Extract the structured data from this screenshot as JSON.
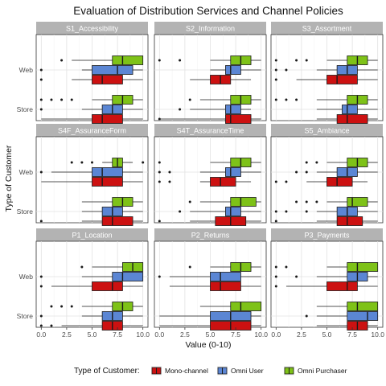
{
  "chart_data": {
    "type": "boxplot",
    "title": "Evaluation of Distribution Services and Channel Policies",
    "xlabel": "Value (0-10)",
    "ylabel": "Type of Customer",
    "xlim": [
      -0.5,
      10.5
    ],
    "x_ticks": [
      "0.0",
      "2.5",
      "5.0",
      "7.5",
      "10.0"
    ],
    "y_categories": [
      "Web",
      "Store"
    ],
    "legend": {
      "title": "Type of Customer:",
      "position": "bottom",
      "items": [
        {
          "name": "Mono-channel",
          "color": "#cc1111"
        },
        {
          "name": "Omni User",
          "color": "#5b86d4"
        },
        {
          "name": "Omni Purchaser",
          "color": "#7ec218"
        }
      ]
    },
    "grid": true,
    "panels": [
      {
        "label": "S1_Accessibility",
        "groups": {
          "Web": [
            {
              "series": "Omni Purchaser",
              "whisker_low": 3,
              "q1": 7,
              "median": 8,
              "q3": 10,
              "whisker_high": 10,
              "outliers": [
                2
              ]
            },
            {
              "series": "Omni User",
              "whisker_low": 4,
              "q1": 5,
              "median": 7.5,
              "q3": 9,
              "whisker_high": 10,
              "outliers": [
                0
              ]
            },
            {
              "series": "Mono-channel",
              "whisker_low": 3,
              "q1": 5,
              "median": 6,
              "q3": 8,
              "whisker_high": 10,
              "outliers": [
                0
              ]
            }
          ],
          "Store": [
            {
              "series": "Omni Purchaser",
              "whisker_low": 5,
              "q1": 7,
              "median": 8,
              "q3": 9,
              "whisker_high": 10,
              "outliers": [
                0,
                1,
                2,
                3
              ]
            },
            {
              "series": "Omni User",
              "whisker_low": 4,
              "q1": 6,
              "median": 7,
              "q3": 8,
              "whisker_high": 10,
              "outliers": [
                0
              ]
            },
            {
              "series": "Mono-channel",
              "whisker_low": 0,
              "q1": 5,
              "median": 6,
              "q3": 8,
              "whisker_high": 10,
              "outliers": []
            }
          ]
        }
      },
      {
        "label": "S2_Information",
        "groups": {
          "Web": [
            {
              "series": "Omni Purchaser",
              "whisker_low": 5,
              "q1": 7,
              "median": 8,
              "q3": 9,
              "whisker_high": 10,
              "outliers": [
                0,
                2
              ]
            },
            {
              "series": "Omni User",
              "whisker_low": 5,
              "q1": 6.5,
              "median": 7,
              "q3": 8,
              "whisker_high": 10,
              "outliers": []
            },
            {
              "series": "Mono-channel",
              "whisker_low": 3,
              "q1": 5,
              "median": 6,
              "q3": 7,
              "whisker_high": 9,
              "outliers": []
            }
          ],
          "Store": [
            {
              "series": "Omni Purchaser",
              "whisker_low": 4,
              "q1": 7,
              "median": 8,
              "q3": 9,
              "whisker_high": 10,
              "outliers": [
                3
              ]
            },
            {
              "series": "Omni User",
              "whisker_low": 3,
              "q1": 6.5,
              "median": 7,
              "q3": 8,
              "whisker_high": 9,
              "outliers": [
                2
              ]
            },
            {
              "series": "Mono-channel",
              "whisker_low": 0,
              "q1": 6.5,
              "median": 7,
              "q3": 9,
              "whisker_high": 10,
              "outliers": [
                0
              ]
            }
          ]
        }
      },
      {
        "label": "S3_Assortment",
        "groups": {
          "Web": [
            {
              "series": "Omni Purchaser",
              "whisker_low": 5,
              "q1": 7,
              "median": 8,
              "q3": 9,
              "whisker_high": 10,
              "outliers": [
                0,
                2,
                3
              ]
            },
            {
              "series": "Omni User",
              "whisker_low": 4,
              "q1": 6,
              "median": 7,
              "q3": 8,
              "whisker_high": 10,
              "outliers": [
                0,
                1
              ]
            },
            {
              "series": "Mono-channel",
              "whisker_low": 2,
              "q1": 5,
              "median": 6,
              "q3": 8,
              "whisker_high": 10,
              "outliers": [
                0
              ]
            }
          ],
          "Store": [
            {
              "series": "Omni Purchaser",
              "whisker_low": 4,
              "q1": 7,
              "median": 8,
              "q3": 9,
              "whisker_high": 10,
              "outliers": [
                0,
                1,
                2
              ]
            },
            {
              "series": "Omni User",
              "whisker_low": 4,
              "q1": 6.5,
              "median": 7,
              "q3": 8,
              "whisker_high": 10,
              "outliers": []
            },
            {
              "series": "Mono-channel",
              "whisker_low": 4,
              "q1": 6,
              "median": 7,
              "q3": 9,
              "whisker_high": 10,
              "outliers": []
            }
          ]
        }
      },
      {
        "label": "S4F_AssuranceForm",
        "groups": {
          "Web": [
            {
              "series": "Omni Purchaser",
              "whisker_low": 6,
              "q1": 7,
              "median": 7.5,
              "q3": 8,
              "whisker_high": 9,
              "outliers": [
                3,
                4,
                5,
                10
              ]
            },
            {
              "series": "Omni User",
              "whisker_low": 1,
              "q1": 5,
              "median": 6,
              "q3": 8,
              "whisker_high": 10,
              "outliers": [
                0
              ]
            },
            {
              "series": "Mono-channel",
              "whisker_low": 0,
              "q1": 5,
              "median": 6,
              "q3": 8,
              "whisker_high": 10,
              "outliers": []
            }
          ],
          "Store": [
            {
              "series": "Omni Purchaser",
              "whisker_low": 4,
              "q1": 7,
              "median": 8,
              "q3": 9,
              "whisker_high": 10,
              "outliers": []
            },
            {
              "series": "Omni User",
              "whisker_low": 4,
              "q1": 6,
              "median": 7,
              "q3": 8,
              "whisker_high": 10,
              "outliers": []
            },
            {
              "series": "Mono-channel",
              "whisker_low": 4,
              "q1": 6,
              "median": 7,
              "q3": 9,
              "whisker_high": 10,
              "outliers": [
                0
              ]
            }
          ]
        }
      },
      {
        "label": "S4T_AssuranceTime",
        "groups": {
          "Web": [
            {
              "series": "Omni Purchaser",
              "whisker_low": 5,
              "q1": 7,
              "median": 8,
              "q3": 9,
              "whisker_high": 10,
              "outliers": [
                0
              ]
            },
            {
              "series": "Omni User",
              "whisker_low": 4,
              "q1": 6.5,
              "median": 7,
              "q3": 8,
              "whisker_high": 10,
              "outliers": [
                0,
                1
              ]
            },
            {
              "series": "Mono-channel",
              "whisker_low": 4,
              "q1": 5,
              "median": 6,
              "q3": 7.5,
              "whisker_high": 9,
              "outliers": [
                0,
                1
              ]
            }
          ],
          "Store": [
            {
              "series": "Omni Purchaser",
              "whisker_low": 4,
              "q1": 7,
              "median": 8,
              "q3": 9.5,
              "whisker_high": 10,
              "outliers": [
                3
              ]
            },
            {
              "series": "Omni User",
              "whisker_low": 3,
              "q1": 6.5,
              "median": 7,
              "q3": 8,
              "whisker_high": 10,
              "outliers": [
                2
              ]
            },
            {
              "series": "Mono-channel",
              "whisker_low": 3,
              "q1": 5.5,
              "median": 7,
              "q3": 8.5,
              "whisker_high": 10,
              "outliers": [
                0
              ]
            }
          ]
        }
      },
      {
        "label": "S5_Ambiance",
        "groups": {
          "Web": [
            {
              "series": "Omni Purchaser",
              "whisker_low": 5,
              "q1": 7,
              "median": 8,
              "q3": 9,
              "whisker_high": 10,
              "outliers": [
                3,
                4
              ]
            },
            {
              "series": "Omni User",
              "whisker_low": 4,
              "q1": 6,
              "median": 7,
              "q3": 8,
              "whisker_high": 10,
              "outliers": [
                2,
                3
              ]
            },
            {
              "series": "Mono-channel",
              "whisker_low": 3,
              "q1": 5,
              "median": 6,
              "q3": 7.5,
              "whisker_high": 9,
              "outliers": [
                0,
                1
              ]
            }
          ],
          "Store": [
            {
              "series": "Omni Purchaser",
              "whisker_low": 5,
              "q1": 7,
              "median": 7.5,
              "q3": 9,
              "whisker_high": 10,
              "outliers": [
                2,
                3,
                4
              ]
            },
            {
              "series": "Omni User",
              "whisker_low": 4,
              "q1": 6,
              "median": 7,
              "q3": 8,
              "whisker_high": 10,
              "outliers": [
                0,
                1,
                3
              ]
            },
            {
              "series": "Mono-channel",
              "whisker_low": 4,
              "q1": 6,
              "median": 7,
              "q3": 8.5,
              "whisker_high": 10,
              "outliers": [
                0
              ]
            }
          ]
        }
      },
      {
        "label": "P1_Location",
        "groups": {
          "Web": [
            {
              "series": "Omni Purchaser",
              "whisker_low": 5,
              "q1": 8,
              "median": 9,
              "q3": 10,
              "whisker_high": 10,
              "outliers": [
                4
              ]
            },
            {
              "series": "Omni User",
              "whisker_low": 4,
              "q1": 7,
              "median": 8,
              "q3": 10,
              "whisker_high": 10,
              "outliers": [
                0
              ]
            },
            {
              "series": "Mono-channel",
              "whisker_low": 1,
              "q1": 5,
              "median": 7,
              "q3": 8,
              "whisker_high": 10,
              "outliers": [
                0
              ]
            }
          ],
          "Store": [
            {
              "series": "Omni Purchaser",
              "whisker_low": 4,
              "q1": 7,
              "median": 8,
              "q3": 9,
              "whisker_high": 10,
              "outliers": [
                1,
                2,
                3
              ]
            },
            {
              "series": "Omni User",
              "whisker_low": 4,
              "q1": 6,
              "median": 7,
              "q3": 8,
              "whisker_high": 10,
              "outliers": [
                0
              ]
            },
            {
              "series": "Mono-channel",
              "whisker_low": 2,
              "q1": 6,
              "median": 7,
              "q3": 8,
              "whisker_high": 10,
              "outliers": [
                0,
                1
              ]
            }
          ]
        }
      },
      {
        "label": "P2_Returns",
        "groups": {
          "Web": [
            {
              "series": "Omni Purchaser",
              "whisker_low": 5,
              "q1": 7,
              "median": 8,
              "q3": 9,
              "whisker_high": 10,
              "outliers": [
                3
              ]
            },
            {
              "series": "Omni User",
              "whisker_low": 1,
              "q1": 5,
              "median": 6,
              "q3": 8,
              "whisker_high": 10,
              "outliers": [
                0
              ]
            },
            {
              "series": "Mono-channel",
              "whisker_low": 1,
              "q1": 5,
              "median": 6,
              "q3": 8,
              "whisker_high": 10,
              "outliers": []
            }
          ],
          "Store": [
            {
              "series": "Omni Purchaser",
              "whisker_low": 4,
              "q1": 7,
              "median": 8,
              "q3": 10,
              "whisker_high": 10,
              "outliers": []
            },
            {
              "series": "Omni User",
              "whisker_low": 0,
              "q1": 5,
              "median": 7,
              "q3": 9,
              "whisker_high": 10,
              "outliers": []
            },
            {
              "series": "Mono-channel",
              "whisker_low": 0,
              "q1": 5,
              "median": 7,
              "q3": 9,
              "whisker_high": 10,
              "outliers": []
            }
          ]
        }
      },
      {
        "label": "P3_Payments",
        "groups": {
          "Web": [
            {
              "series": "Omni Purchaser",
              "whisker_low": 5,
              "q1": 7,
              "median": 8,
              "q3": 10,
              "whisker_high": 10,
              "outliers": [
                0,
                1
              ]
            },
            {
              "series": "Omni User",
              "whisker_low": 4,
              "q1": 7,
              "median": 8,
              "q3": 9,
              "whisker_high": 10,
              "outliers": [
                0,
                2
              ]
            },
            {
              "series": "Mono-channel",
              "whisker_low": 1,
              "q1": 5,
              "median": 7,
              "q3": 8,
              "whisker_high": 10,
              "outliers": [
                0
              ]
            }
          ],
          "Store": [
            {
              "series": "Omni Purchaser",
              "whisker_low": 4,
              "q1": 7,
              "median": 8,
              "q3": 10,
              "whisker_high": 10,
              "outliers": []
            },
            {
              "series": "Omni User",
              "whisker_low": 4,
              "q1": 7,
              "median": 9,
              "q3": 10,
              "whisker_high": 10,
              "outliers": [
                3
              ]
            },
            {
              "series": "Mono-channel",
              "whisker_low": 4,
              "q1": 7,
              "median": 8,
              "q3": 9,
              "whisker_high": 10,
              "outliers": []
            }
          ]
        }
      }
    ]
  }
}
